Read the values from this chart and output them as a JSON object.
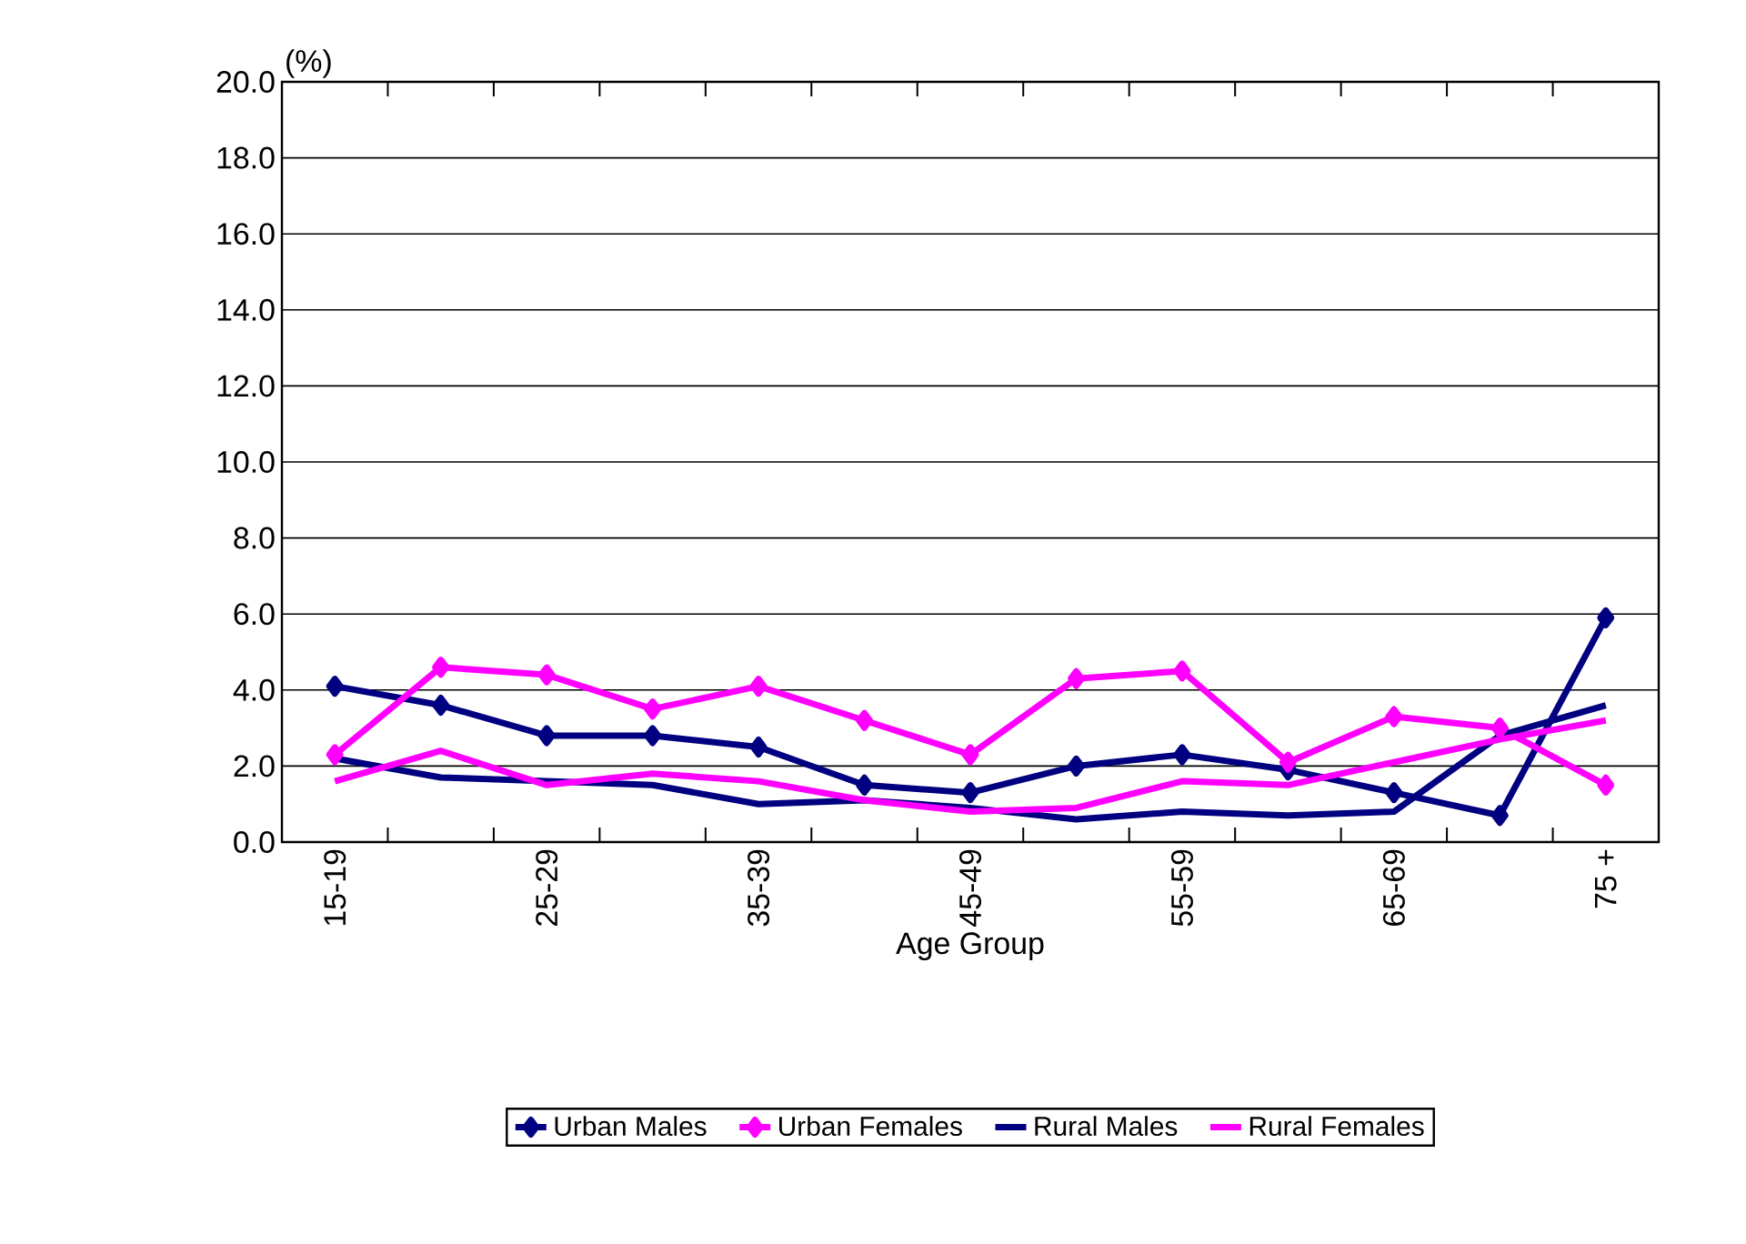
{
  "chart_data": {
    "type": "line",
    "categories": [
      "15-19",
      null,
      "25-29",
      null,
      "35-39",
      null,
      "45-49",
      null,
      "55-59",
      null,
      "65-69",
      null,
      "75 +"
    ],
    "xlabel": "Age Group",
    "ylabel": "(%)",
    "ylim": [
      0,
      20
    ],
    "yticks": [
      {
        "value": 0,
        "label": "0.0"
      },
      {
        "value": 2,
        "label": "2.0"
      },
      {
        "value": 4,
        "label": "4.0"
      },
      {
        "value": 6,
        "label": "6.0"
      },
      {
        "value": 8,
        "label": "8.0"
      },
      {
        "value": 10,
        "label": "10.0"
      },
      {
        "value": 12,
        "label": "12.0"
      },
      {
        "value": 14,
        "label": "14.0"
      },
      {
        "value": 16,
        "label": "16.0"
      },
      {
        "value": 18,
        "label": "18.0"
      },
      {
        "value": 20,
        "label": "20.0"
      }
    ],
    "grid": "y",
    "legend": "bottom",
    "series": [
      {
        "name": "Urban Males",
        "color": "#000080",
        "marker": "diamond",
        "values": [
          4.1,
          3.6,
          2.8,
          2.8,
          2.5,
          1.5,
          1.3,
          2.0,
          2.3,
          1.9,
          1.3,
          0.7,
          5.9
        ]
      },
      {
        "name": "Urban Females",
        "color": "#ff00ff",
        "marker": "diamond",
        "values": [
          2.3,
          4.6,
          4.4,
          3.5,
          4.1,
          3.2,
          2.3,
          4.3,
          4.5,
          2.1,
          3.3,
          3.0,
          1.5
        ]
      },
      {
        "name": "Rural Males",
        "color": "#000080",
        "marker": "none",
        "values": [
          2.2,
          1.7,
          1.6,
          1.5,
          1.0,
          1.1,
          0.9,
          0.6,
          0.8,
          0.7,
          0.8,
          2.8,
          3.6
        ]
      },
      {
        "name": "Rural Females",
        "color": "#ff00ff",
        "marker": "none",
        "values": [
          1.6,
          2.4,
          1.5,
          1.8,
          1.6,
          1.1,
          0.8,
          0.9,
          1.6,
          1.5,
          2.1,
          2.7,
          3.2
        ]
      }
    ]
  }
}
